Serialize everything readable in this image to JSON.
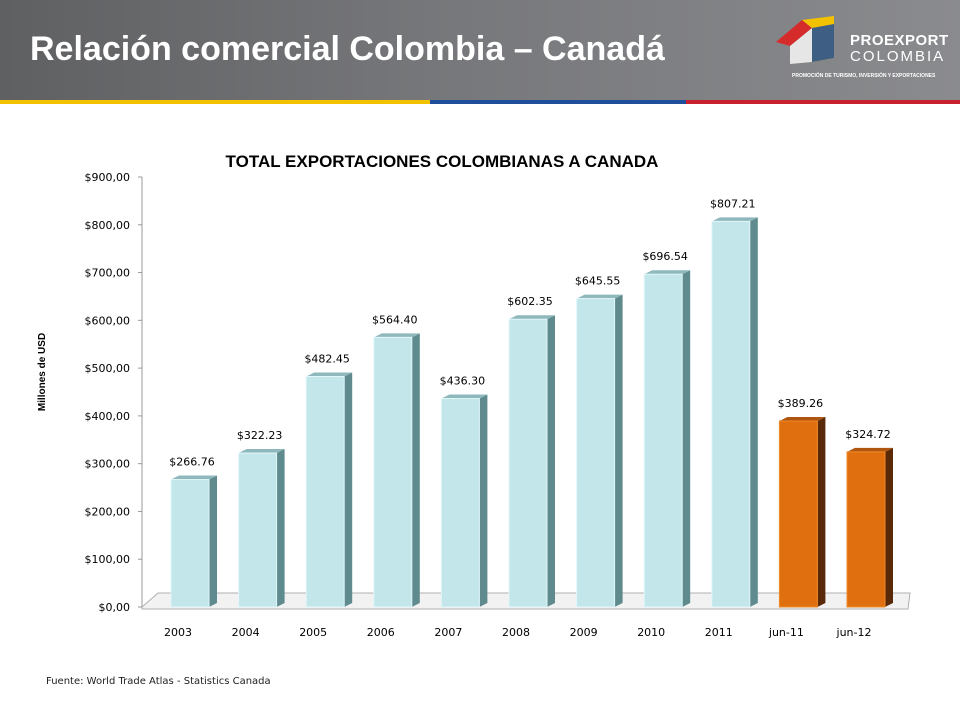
{
  "slide": {
    "title": "Relación comercial Colombia – Canadá",
    "source": "Fuente: World Trade Atlas - Statistics Canada"
  },
  "logo": {
    "name": "PROEXPORT",
    "country": "COLOMBIA",
    "tagline": "PROMOCIÓN DE TURISMO, INVERSIÓN Y EXPORTACIONES"
  },
  "colors": {
    "header": "#6d6e71",
    "stripe_yellow": "#f2c200",
    "stripe_blue": "#1f4e9a",
    "stripe_red": "#c8202e",
    "bar_annual": "#c3e6ea",
    "bar_partial": "#e0700f"
  },
  "chart_data": {
    "type": "bar",
    "title": "TOTAL EXPORTACIONES COLOMBIANAS A CANADA",
    "xlabel": "",
    "ylabel": "Millones de USD",
    "ylim": [
      0,
      900
    ],
    "yticks": [
      "$0,00",
      "$100,00",
      "$200,00",
      "$300,00",
      "$400,00",
      "$500,00",
      "$600,00",
      "$700,00",
      "$800,00",
      "$900,00"
    ],
    "categories": [
      "2003",
      "2004",
      "2005",
      "2006",
      "2007",
      "2008",
      "2009",
      "2010",
      "2011",
      "jun-11",
      "jun-12"
    ],
    "values": [
      266.76,
      322.23,
      482.45,
      564.4,
      436.3,
      602.35,
      645.55,
      696.54,
      807.21,
      389.26,
      324.72
    ],
    "labels": [
      "$266.76",
      "$322.23",
      "$482.45",
      "$564.40",
      "$436.30",
      "$602.35",
      "$645.55",
      "$696.54",
      "$807.21",
      "$389.26",
      "$324.72"
    ],
    "bar_style": [
      "annual",
      "annual",
      "annual",
      "annual",
      "annual",
      "annual",
      "annual",
      "annual",
      "annual",
      "partial",
      "partial"
    ],
    "grid": false,
    "legend": "none"
  }
}
